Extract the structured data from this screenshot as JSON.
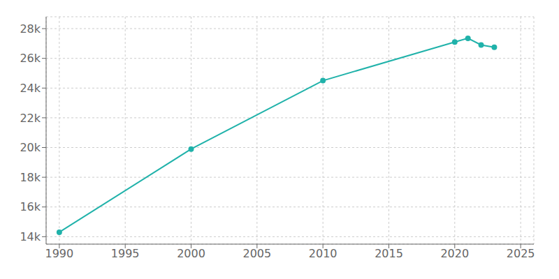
{
  "chart_data": {
    "type": "line",
    "x": [
      1990,
      2000,
      2010,
      2020,
      2021,
      2022,
      2023
    ],
    "values": [
      14300,
      19900,
      24500,
      27100,
      27350,
      26900,
      26750
    ],
    "color": "#20b2aa",
    "marker": "o",
    "xlim": [
      1989,
      2026
    ],
    "xticks": [
      1990,
      1995,
      2000,
      2005,
      2010,
      2015,
      2020,
      2025
    ],
    "ylim": [
      13500,
      28800
    ],
    "yticks": [
      {
        "value": 14000,
        "label": "14k"
      },
      {
        "value": 16000,
        "label": "16k"
      },
      {
        "value": 18000,
        "label": "18k"
      },
      {
        "value": 20000,
        "label": "20k"
      },
      {
        "value": 22000,
        "label": "22k"
      },
      {
        "value": 24000,
        "label": "24k"
      },
      {
        "value": 26000,
        "label": "26k"
      },
      {
        "value": 28000,
        "label": "28k"
      }
    ],
    "grid": true
  }
}
